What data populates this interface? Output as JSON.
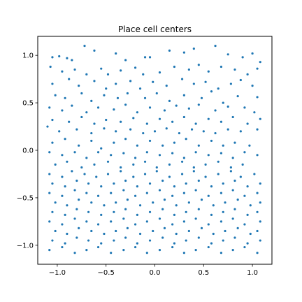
{
  "chart_data": {
    "type": "scatter",
    "title": "Place cell centers",
    "xlabel": "",
    "ylabel": "",
    "xlim": [
      -1.2,
      1.2
    ],
    "ylim": [
      -1.2,
      1.2
    ],
    "xticks": [
      -1.0,
      -0.5,
      0.0,
      0.5,
      1.0
    ],
    "yticks": [
      -1.0,
      -0.5,
      0.0,
      0.5,
      1.0
    ],
    "xtick_labels": [
      "−1.0",
      "−0.5",
      "0.0",
      "0.5",
      "1.0"
    ],
    "ytick_labels": [
      "−1.0",
      "−0.5",
      "0.0",
      "0.5",
      "1.0"
    ],
    "grid": false,
    "marker_color": "#1f77b4",
    "points": [
      [
        -1.05,
        0.98
      ],
      [
        -0.98,
        0.99
      ],
      [
        -0.9,
        0.97
      ],
      [
        -0.85,
        0.95
      ],
      [
        -0.72,
        1.1
      ],
      [
        -0.62,
        1.05
      ],
      [
        -0.4,
        1.02
      ],
      [
        -0.3,
        0.95
      ],
      [
        -0.1,
        0.98
      ],
      [
        -0.05,
        0.98
      ],
      [
        0.15,
        1.05
      ],
      [
        0.3,
        1.03
      ],
      [
        0.4,
        1.07
      ],
      [
        0.62,
        1.1
      ],
      [
        0.75,
        1.01
      ],
      [
        0.9,
        0.98
      ],
      [
        1.0,
        1.02
      ],
      [
        1.08,
        0.93
      ],
      [
        -1.07,
        0.88
      ],
      [
        -0.95,
        0.83
      ],
      [
        -0.82,
        0.85
      ],
      [
        -0.7,
        0.8
      ],
      [
        -0.55,
        0.86
      ],
      [
        -0.48,
        0.8
      ],
      [
        -0.35,
        0.84
      ],
      [
        -0.2,
        0.87
      ],
      [
        -0.12,
        0.8
      ],
      [
        0.05,
        0.82
      ],
      [
        0.2,
        0.88
      ],
      [
        0.35,
        0.85
      ],
      [
        0.45,
        0.9
      ],
      [
        0.55,
        0.83
      ],
      [
        0.68,
        0.88
      ],
      [
        0.82,
        0.85
      ],
      [
        0.95,
        0.8
      ],
      [
        1.05,
        0.86
      ],
      [
        -1.05,
        0.7
      ],
      [
        -0.88,
        0.75
      ],
      [
        -0.78,
        0.68
      ],
      [
        -0.62,
        0.73
      ],
      [
        -0.5,
        0.65
      ],
      [
        -0.4,
        0.7
      ],
      [
        -0.25,
        0.73
      ],
      [
        -0.15,
        0.65
      ],
      [
        -0.02,
        0.72
      ],
      [
        0.12,
        0.68
      ],
      [
        0.28,
        0.75
      ],
      [
        0.4,
        0.7
      ],
      [
        0.52,
        0.72
      ],
      [
        0.65,
        0.65
      ],
      [
        0.78,
        0.7
      ],
      [
        0.88,
        0.74
      ],
      [
        1.0,
        0.68
      ],
      [
        -1.02,
        0.58
      ],
      [
        -0.92,
        0.55
      ],
      [
        -0.75,
        0.6
      ],
      [
        -0.65,
        0.52
      ],
      [
        -0.52,
        0.58
      ],
      [
        -0.38,
        0.55
      ],
      [
        -0.28,
        0.6
      ],
      [
        -0.1,
        0.55
      ],
      [
        0.02,
        0.6
      ],
      [
        0.15,
        0.52
      ],
      [
        0.3,
        0.58
      ],
      [
        0.48,
        0.55
      ],
      [
        0.58,
        0.62
      ],
      [
        0.7,
        0.5
      ],
      [
        0.85,
        0.57
      ],
      [
        1.05,
        0.56
      ],
      [
        -1.08,
        0.45
      ],
      [
        -0.95,
        0.42
      ],
      [
        -0.85,
        0.47
      ],
      [
        -0.7,
        0.4
      ],
      [
        -0.58,
        0.45
      ],
      [
        -0.42,
        0.43
      ],
      [
        -0.3,
        0.48
      ],
      [
        -0.18,
        0.4
      ],
      [
        -0.05,
        0.45
      ],
      [
        0.1,
        0.42
      ],
      [
        0.22,
        0.47
      ],
      [
        0.35,
        0.44
      ],
      [
        0.45,
        0.48
      ],
      [
        0.62,
        0.42
      ],
      [
        0.75,
        0.46
      ],
      [
        0.92,
        0.45
      ],
      [
        1.02,
        0.4
      ],
      [
        -1.05,
        0.32
      ],
      [
        -0.88,
        0.3
      ],
      [
        -0.75,
        0.35
      ],
      [
        -0.62,
        0.28
      ],
      [
        -0.5,
        0.32
      ],
      [
        -0.35,
        0.3
      ],
      [
        -0.22,
        0.34
      ],
      [
        -0.08,
        0.28
      ],
      [
        0.05,
        0.33
      ],
      [
        0.18,
        0.3
      ],
      [
        0.3,
        0.35
      ],
      [
        0.42,
        0.28
      ],
      [
        0.55,
        0.33
      ],
      [
        0.68,
        0.3
      ],
      [
        0.8,
        0.35
      ],
      [
        0.95,
        0.28
      ],
      [
        1.08,
        0.33
      ],
      [
        -1.1,
        0.25
      ],
      [
        -0.98,
        0.2
      ],
      [
        -0.8,
        0.22
      ],
      [
        -0.65,
        0.18
      ],
      [
        -0.52,
        0.23
      ],
      [
        -0.4,
        0.2
      ],
      [
        -0.25,
        0.22
      ],
      [
        -0.12,
        0.18
      ],
      [
        0.0,
        0.2
      ],
      [
        0.12,
        0.23
      ],
      [
        0.25,
        0.18
      ],
      [
        0.38,
        0.22
      ],
      [
        0.5,
        0.2
      ],
      [
        0.62,
        0.18
      ],
      [
        0.75,
        0.22
      ],
      [
        0.88,
        0.2
      ],
      [
        1.05,
        0.22
      ],
      [
        -1.05,
        0.08
      ],
      [
        -0.92,
        0.12
      ],
      [
        -0.78,
        0.05
      ],
      [
        -0.65,
        0.1
      ],
      [
        -0.55,
        0.02
      ],
      [
        -0.42,
        0.08
      ],
      [
        -0.3,
        0.12
      ],
      [
        -0.18,
        0.05
      ],
      [
        -0.05,
        0.1
      ],
      [
        0.08,
        0.05
      ],
      [
        0.2,
        0.08
      ],
      [
        0.32,
        0.12
      ],
      [
        0.45,
        0.05
      ],
      [
        0.58,
        0.1
      ],
      [
        0.7,
        0.05
      ],
      [
        0.82,
        0.08
      ],
      [
        0.97,
        0.05
      ],
      [
        -1.08,
        -0.02
      ],
      [
        -0.95,
        -0.05
      ],
      [
        -0.82,
        -0.02
      ],
      [
        -0.7,
        -0.08
      ],
      [
        -0.58,
        -0.02
      ],
      [
        -0.45,
        -0.05
      ],
      [
        -0.32,
        -0.03
      ],
      [
        -0.2,
        -0.08
      ],
      [
        -0.08,
        -0.02
      ],
      [
        0.05,
        -0.05
      ],
      [
        0.18,
        -0.03
      ],
      [
        0.3,
        -0.08
      ],
      [
        0.42,
        -0.02
      ],
      [
        0.55,
        -0.05
      ],
      [
        0.68,
        -0.03
      ],
      [
        0.8,
        -0.08
      ],
      [
        0.92,
        -0.02
      ],
      [
        1.05,
        -0.05
      ],
      [
        -1.02,
        -0.15
      ],
      [
        -0.9,
        -0.12
      ],
      [
        -0.75,
        -0.18
      ],
      [
        -0.62,
        -0.15
      ],
      [
        -0.48,
        -0.12
      ],
      [
        -0.35,
        -0.18
      ],
      [
        -0.22,
        -0.15
      ],
      [
        -0.1,
        -0.12
      ],
      [
        0.02,
        -0.18
      ],
      [
        0.15,
        -0.15
      ],
      [
        0.28,
        -0.12
      ],
      [
        0.4,
        -0.18
      ],
      [
        0.52,
        -0.15
      ],
      [
        0.65,
        -0.12
      ],
      [
        0.78,
        -0.18
      ],
      [
        0.9,
        -0.15
      ],
      [
        -1.08,
        -0.25
      ],
      [
        -0.95,
        -0.28
      ],
      [
        -0.85,
        -0.22
      ],
      [
        -0.72,
        -0.25
      ],
      [
        -0.6,
        -0.28
      ],
      [
        -0.48,
        -0.25
      ],
      [
        -0.35,
        -0.22
      ],
      [
        -0.22,
        -0.28
      ],
      [
        -0.1,
        -0.25
      ],
      [
        0.02,
        -0.22
      ],
      [
        0.15,
        -0.28
      ],
      [
        0.28,
        -0.25
      ],
      [
        0.4,
        -0.22
      ],
      [
        0.52,
        -0.28
      ],
      [
        0.65,
        -0.25
      ],
      [
        0.78,
        -0.22
      ],
      [
        0.88,
        -0.28
      ],
      [
        1.02,
        -0.25
      ],
      [
        -1.05,
        -0.35
      ],
      [
        -0.92,
        -0.38
      ],
      [
        -0.8,
        -0.32
      ],
      [
        -0.68,
        -0.35
      ],
      [
        -0.55,
        -0.38
      ],
      [
        -0.42,
        -0.35
      ],
      [
        -0.3,
        -0.32
      ],
      [
        -0.18,
        -0.38
      ],
      [
        -0.05,
        -0.35
      ],
      [
        0.08,
        -0.32
      ],
      [
        0.2,
        -0.38
      ],
      [
        0.32,
        -0.35
      ],
      [
        0.45,
        -0.32
      ],
      [
        0.58,
        -0.38
      ],
      [
        0.7,
        -0.35
      ],
      [
        0.82,
        -0.32
      ],
      [
        0.95,
        -0.38
      ],
      [
        1.08,
        -0.35
      ],
      [
        -1.08,
        -0.45
      ],
      [
        -0.95,
        -0.48
      ],
      [
        -0.82,
        -0.42
      ],
      [
        -0.7,
        -0.45
      ],
      [
        -0.58,
        -0.48
      ],
      [
        -0.45,
        -0.45
      ],
      [
        -0.32,
        -0.42
      ],
      [
        -0.2,
        -0.48
      ],
      [
        -0.08,
        -0.45
      ],
      [
        0.05,
        -0.42
      ],
      [
        0.18,
        -0.48
      ],
      [
        0.3,
        -0.45
      ],
      [
        0.42,
        -0.42
      ],
      [
        0.55,
        -0.48
      ],
      [
        0.68,
        -0.45
      ],
      [
        0.8,
        -0.42
      ],
      [
        0.92,
        -0.48
      ],
      [
        1.05,
        -0.45
      ],
      [
        -1.02,
        -0.55
      ],
      [
        -0.9,
        -0.58
      ],
      [
        -0.78,
        -0.52
      ],
      [
        -0.65,
        -0.55
      ],
      [
        -0.52,
        -0.58
      ],
      [
        -0.4,
        -0.55
      ],
      [
        -0.28,
        -0.52
      ],
      [
        -0.15,
        -0.58
      ],
      [
        -0.02,
        -0.55
      ],
      [
        0.1,
        -0.52
      ],
      [
        0.22,
        -0.58
      ],
      [
        0.35,
        -0.55
      ],
      [
        0.48,
        -0.52
      ],
      [
        0.6,
        -0.58
      ],
      [
        0.72,
        -0.55
      ],
      [
        0.85,
        -0.52
      ],
      [
        0.98,
        -0.58
      ],
      [
        1.08,
        -0.55
      ],
      [
        -1.05,
        -0.65
      ],
      [
        -0.92,
        -0.68
      ],
      [
        -0.8,
        -0.62
      ],
      [
        -0.68,
        -0.65
      ],
      [
        -0.55,
        -0.68
      ],
      [
        -0.42,
        -0.65
      ],
      [
        -0.3,
        -0.62
      ],
      [
        -0.18,
        -0.68
      ],
      [
        -0.05,
        -0.65
      ],
      [
        0.08,
        -0.62
      ],
      [
        0.2,
        -0.68
      ],
      [
        0.32,
        -0.65
      ],
      [
        0.45,
        -0.62
      ],
      [
        0.58,
        -0.68
      ],
      [
        0.7,
        -0.65
      ],
      [
        0.82,
        -0.62
      ],
      [
        0.95,
        -0.68
      ],
      [
        1.05,
        -0.65
      ],
      [
        -1.08,
        -0.75
      ],
      [
        -0.95,
        -0.78
      ],
      [
        -0.82,
        -0.72
      ],
      [
        -0.7,
        -0.75
      ],
      [
        -0.58,
        -0.78
      ],
      [
        -0.45,
        -0.75
      ],
      [
        -0.32,
        -0.72
      ],
      [
        -0.2,
        -0.78
      ],
      [
        -0.08,
        -0.75
      ],
      [
        0.05,
        -0.72
      ],
      [
        0.18,
        -0.78
      ],
      [
        0.3,
        -0.75
      ],
      [
        0.42,
        -0.72
      ],
      [
        0.55,
        -0.78
      ],
      [
        0.68,
        -0.75
      ],
      [
        0.8,
        -0.72
      ],
      [
        0.92,
        -0.78
      ],
      [
        1.08,
        -0.75
      ],
      [
        -1.02,
        -0.85
      ],
      [
        -0.9,
        -0.88
      ],
      [
        -0.78,
        -0.82
      ],
      [
        -0.65,
        -0.85
      ],
      [
        -0.52,
        -0.88
      ],
      [
        -0.4,
        -0.85
      ],
      [
        -0.28,
        -0.82
      ],
      [
        -0.15,
        -0.88
      ],
      [
        -0.02,
        -0.85
      ],
      [
        0.1,
        -0.82
      ],
      [
        0.22,
        -0.88
      ],
      [
        0.35,
        -0.85
      ],
      [
        0.48,
        -0.82
      ],
      [
        0.6,
        -0.88
      ],
      [
        0.72,
        -0.85
      ],
      [
        0.85,
        -0.82
      ],
      [
        0.98,
        -0.88
      ],
      [
        1.05,
        -0.85
      ],
      [
        -1.05,
        -0.95
      ],
      [
        -0.92,
        -0.98
      ],
      [
        -0.8,
        -0.92
      ],
      [
        -0.68,
        -0.95
      ],
      [
        -0.55,
        -0.98
      ],
      [
        -0.42,
        -0.95
      ],
      [
        -0.3,
        -0.92
      ],
      [
        -0.18,
        -0.98
      ],
      [
        -0.05,
        -0.95
      ],
      [
        0.08,
        -0.92
      ],
      [
        0.2,
        -0.98
      ],
      [
        0.32,
        -0.95
      ],
      [
        0.45,
        -0.92
      ],
      [
        0.58,
        -0.98
      ],
      [
        0.7,
        -0.95
      ],
      [
        0.82,
        -0.92
      ],
      [
        0.95,
        -0.98
      ],
      [
        1.08,
        -0.95
      ],
      [
        -1.08,
        -1.05
      ],
      [
        -0.95,
        -1.02
      ],
      [
        -0.82,
        -1.08
      ],
      [
        -0.7,
        -1.05
      ],
      [
        -0.58,
        -1.02
      ],
      [
        -0.45,
        -1.08
      ],
      [
        -0.32,
        -1.05
      ],
      [
        -0.2,
        -1.02
      ],
      [
        -0.08,
        -1.08
      ],
      [
        0.05,
        -1.05
      ],
      [
        0.18,
        -1.02
      ],
      [
        0.3,
        -1.08
      ],
      [
        0.42,
        -1.05
      ],
      [
        0.55,
        -1.02
      ],
      [
        0.68,
        -1.08
      ],
      [
        0.8,
        -1.05
      ],
      [
        0.92,
        -1.02
      ],
      [
        1.05,
        -1.08
      ]
    ]
  }
}
